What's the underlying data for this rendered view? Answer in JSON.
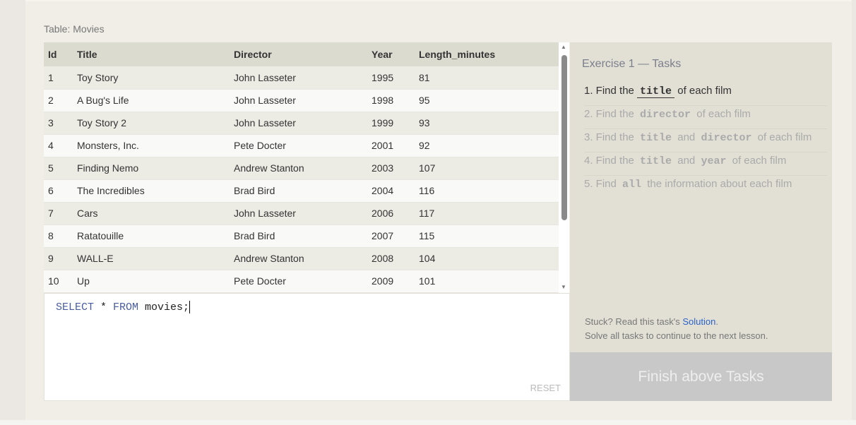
{
  "table_label": "Table: Movies",
  "columns": [
    "Id",
    "Title",
    "Director",
    "Year",
    "Length_minutes"
  ],
  "rows": [
    [
      "1",
      "Toy Story",
      "John Lasseter",
      "1995",
      "81"
    ],
    [
      "2",
      "A Bug's Life",
      "John Lasseter",
      "1998",
      "95"
    ],
    [
      "3",
      "Toy Story 2",
      "John Lasseter",
      "1999",
      "93"
    ],
    [
      "4",
      "Monsters, Inc.",
      "Pete Docter",
      "2001",
      "92"
    ],
    [
      "5",
      "Finding Nemo",
      "Andrew Stanton",
      "2003",
      "107"
    ],
    [
      "6",
      "The Incredibles",
      "Brad Bird",
      "2004",
      "116"
    ],
    [
      "7",
      "Cars",
      "John Lasseter",
      "2006",
      "117"
    ],
    [
      "8",
      "Ratatouille",
      "Brad Bird",
      "2007",
      "115"
    ],
    [
      "9",
      "WALL-E",
      "Andrew Stanton",
      "2008",
      "104"
    ],
    [
      "10",
      "Up",
      "Pete Docter",
      "2009",
      "101"
    ]
  ],
  "editor": {
    "kw1": "SELECT",
    "star": " * ",
    "kw2": "FROM",
    "rest": " movies;",
    "reset_label": "RESET"
  },
  "side": {
    "title": "Exercise 1 — Tasks",
    "tasks": [
      {
        "parts": [
          "1. Find the ",
          "title",
          " of each film"
        ]
      },
      {
        "parts": [
          "2. Find the ",
          "director",
          " of each film"
        ]
      },
      {
        "parts": [
          "3. Find the ",
          "title",
          " and ",
          "director",
          " of each film"
        ]
      },
      {
        "parts": [
          "4. Find the ",
          "title",
          " and ",
          "year",
          " of each film"
        ]
      },
      {
        "parts": [
          "5. Find ",
          "all",
          " the information about each film"
        ]
      }
    ],
    "stuck_text": "Stuck? Read this task's ",
    "solution_link": "Solution",
    "stuck_end": ".",
    "continue_text": "Solve all tasks to continue to the next lesson.",
    "finish_label": "Finish above Tasks"
  },
  "colors": {
    "link": "#2a62c9",
    "keyword": "#4a5da0"
  }
}
